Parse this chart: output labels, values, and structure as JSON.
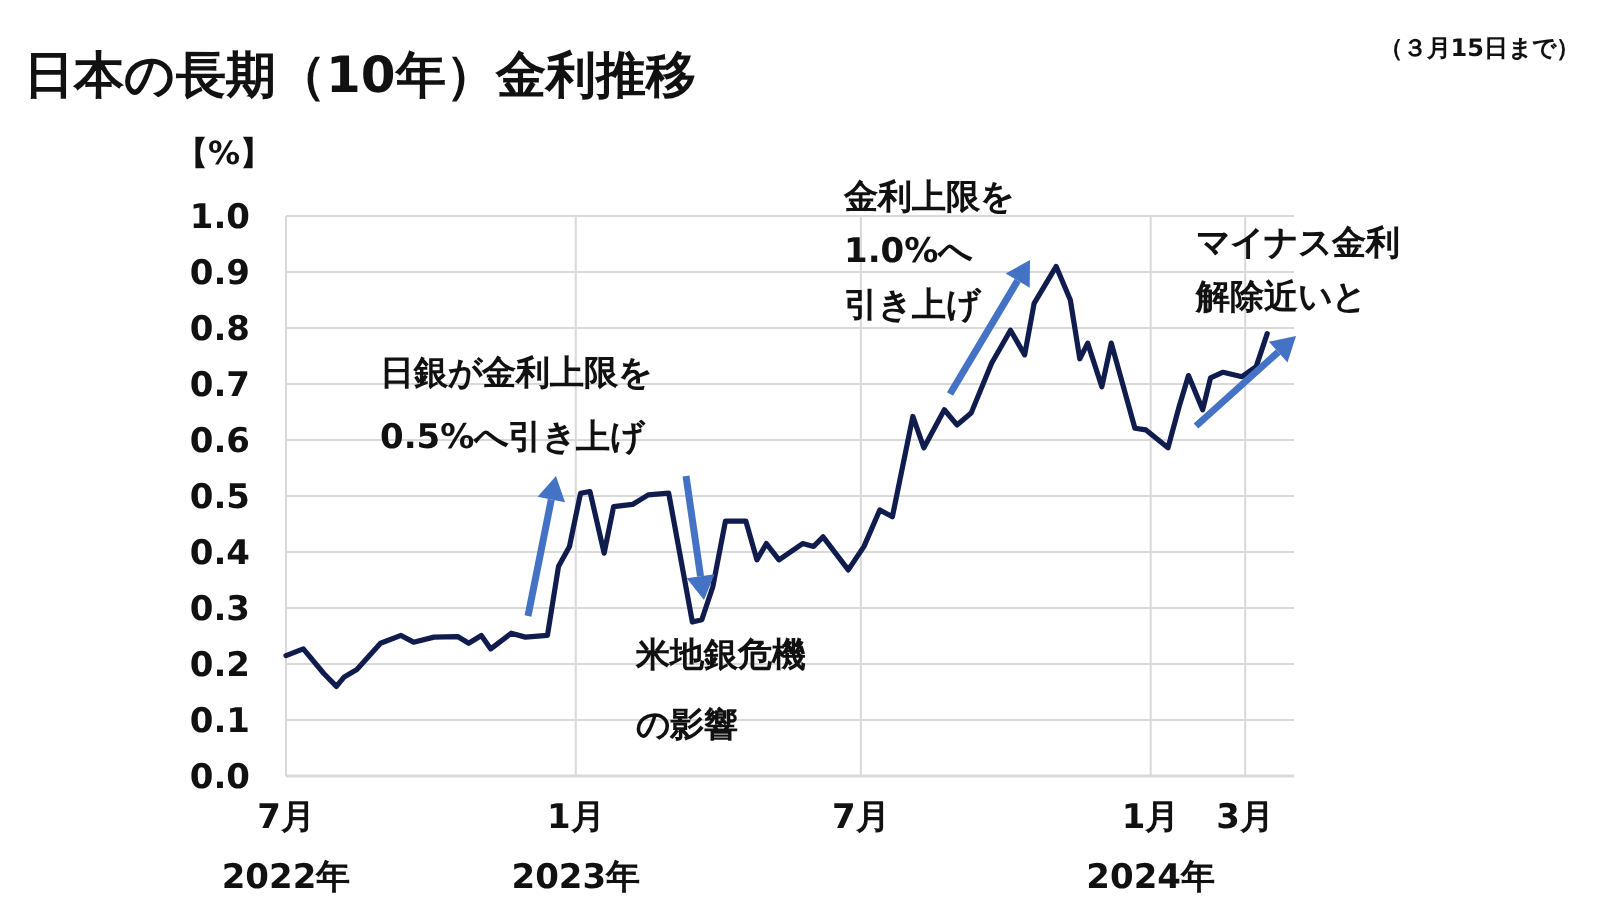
{
  "chart_data": {
    "type": "line",
    "title": "日本の長期（10年）金利推移",
    "subtitle": "（３月15日まで）",
    "ylabel": "【%】",
    "annotations": [
      "日銀が金利上限を",
      "0.5%へ引き上げ",
      "米地銀危機",
      "の影響",
      "金利上限を",
      "1.0%へ",
      "引き上げ",
      "マイナス金利",
      "解除近いと"
    ],
    "x": [
      "2022-07-01",
      "2022-07-12",
      "2022-07-25",
      "2022-08-02",
      "2022-08-07",
      "2022-08-15",
      "2022-08-30",
      "2022-09-12",
      "2022-09-20",
      "2022-10-03",
      "2022-10-18",
      "2022-10-25",
      "2022-11-02",
      "2022-11-08",
      "2022-11-21",
      "2022-11-30",
      "2022-12-14",
      "2022-12-21",
      "2022-12-28",
      "2023-01-04",
      "2023-01-10",
      "2023-01-19",
      "2023-01-25",
      "2023-02-06",
      "2023-02-16",
      "2023-03-01",
      "2023-03-16",
      "2023-03-22",
      "2023-03-29",
      "2023-04-06",
      "2023-04-19",
      "2023-04-26",
      "2023-05-02",
      "2023-05-10",
      "2023-05-25",
      "2023-06-01",
      "2023-06-07",
      "2023-06-23",
      "2023-07-03",
      "2023-07-13",
      "2023-07-21",
      "2023-08-03",
      "2023-08-10",
      "2023-08-23",
      "2023-08-31",
      "2023-09-09",
      "2023-09-22",
      "2023-10-04",
      "2023-10-13",
      "2023-10-19",
      "2023-11-02",
      "2023-11-11",
      "2023-11-17",
      "2023-11-22",
      "2023-12-01",
      "2023-12-07",
      "2023-12-22",
      "2023-12-29",
      "2024-01-12",
      "2024-01-19",
      "2024-01-25",
      "2024-02-03",
      "2024-02-08",
      "2024-02-16",
      "2024-02-28",
      "2024-03-08",
      "2024-03-15"
    ],
    "series": [
      {
        "color": "#0f1c4d",
        "values": [
          0.215,
          0.227,
          0.183,
          0.16,
          0.177,
          0.19,
          0.237,
          0.251,
          0.239,
          0.248,
          0.249,
          0.237,
          0.251,
          0.227,
          0.255,
          0.248,
          0.251,
          0.374,
          0.41,
          0.505,
          0.508,
          0.398,
          0.481,
          0.485,
          0.502,
          0.505,
          0.275,
          0.279,
          0.338,
          0.455,
          0.455,
          0.386,
          0.415,
          0.386,
          0.415,
          0.41,
          0.427,
          0.368,
          0.41,
          0.475,
          0.463,
          0.642,
          0.586,
          0.654,
          0.627,
          0.648,
          0.737,
          0.796,
          0.752,
          0.844,
          0.91,
          0.85,
          0.745,
          0.773,
          0.695,
          0.773,
          0.621,
          0.618,
          0.586,
          0.659,
          0.715,
          0.654,
          0.711,
          0.721,
          0.713,
          0.731,
          0.79
        ]
      }
    ],
    "xlim": [
      "2022-07-01",
      "2024-04-01"
    ],
    "xticks": [
      {
        "value": "2022-07-01",
        "label": "7月\n2022年"
      },
      {
        "value": "2023-01-01",
        "label": "1月\n2023年"
      },
      {
        "value": "2023-07-01",
        "label": "7月"
      },
      {
        "value": "2024-01-01",
        "label": "1月\n2024年"
      },
      {
        "value": "2024-03-01",
        "label": "3月"
      }
    ],
    "ylim": [
      0,
      1
    ],
    "yticks": [
      {
        "value": 0,
        "label": "0.0"
      },
      {
        "value": 0.1,
        "label": "0.1"
      },
      {
        "value": 0.2,
        "label": "0.2"
      },
      {
        "value": 0.3,
        "label": "0.3"
      },
      {
        "value": 0.4,
        "label": "0.4"
      },
      {
        "value": 0.5,
        "label": "0.5"
      },
      {
        "value": 0.6,
        "label": "0.6"
      },
      {
        "value": 0.7,
        "label": "0.7"
      },
      {
        "value": 0.8,
        "label": "0.8"
      },
      {
        "value": 0.9,
        "label": "0.9"
      },
      {
        "value": 1,
        "label": "1.0"
      }
    ],
    "grid": true,
    "line_style": "solid",
    "marker": "none"
  }
}
